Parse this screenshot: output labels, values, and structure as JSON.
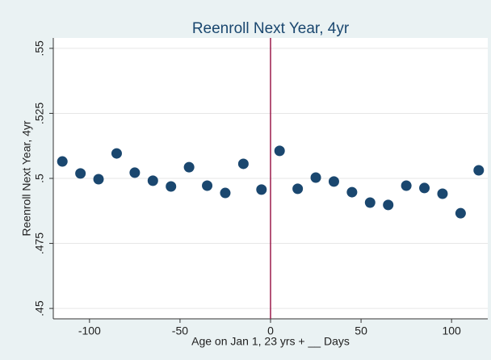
{
  "chart_data": {
    "type": "scatter",
    "title": "Reenroll Next Year, 4yr",
    "x_label": "Age on Jan 1, 23 yrs + __ Days",
    "y_label": "Reenroll Next Year, 4yr",
    "x": [
      -115,
      -105,
      -95,
      -85,
      -75,
      -65,
      -55,
      -45,
      -35,
      -25,
      -15,
      -5,
      5,
      15,
      25,
      35,
      45,
      55,
      65,
      75,
      85,
      95,
      105,
      115
    ],
    "values": [
      0.5065,
      0.5019,
      0.4997,
      0.5096,
      0.5022,
      0.4991,
      0.4969,
      0.5043,
      0.4972,
      0.4944,
      0.5056,
      0.4957,
      0.5106,
      0.496,
      0.5003,
      0.4988,
      0.4947,
      0.4907,
      0.4898,
      0.4972,
      0.4963,
      0.4941,
      0.4866,
      0.5031
    ],
    "color": "#1a476f",
    "xlim": [
      -120,
      120
    ],
    "xticks": [
      -100,
      -50,
      0,
      50,
      100
    ],
    "ylim": [
      0.446,
      0.554
    ],
    "yticks": [
      {
        "value": 0.45,
        "label": ".45"
      },
      {
        "value": 0.475,
        "label": ".475"
      },
      {
        "value": 0.5,
        "label": ".5"
      },
      {
        "value": 0.525,
        "label": ".525"
      },
      {
        "value": 0.55,
        "label": ".55"
      }
    ],
    "grid": true,
    "vline": 0,
    "vline_color": "#9b1b4c"
  }
}
